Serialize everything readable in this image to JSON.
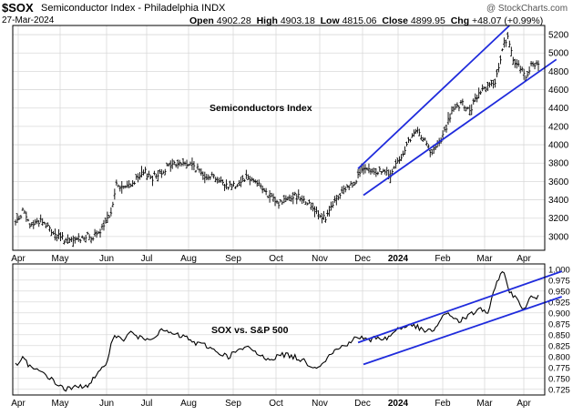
{
  "header": {
    "symbol": "$SOX",
    "name": "Semiconductor Index - Philadelphia",
    "exchange": "INDX",
    "date": "27-Mar-2024",
    "open_label": "Open",
    "open": "4902.28",
    "high_label": "High",
    "high": "4903.18",
    "low_label": "Low",
    "low": "4815.06",
    "close_label": "Close",
    "close": "4899.95",
    "chg_label": "Chg",
    "chg": "+48.07 (+0.99%)",
    "watermark": "@ StockCharts.com"
  },
  "colors": {
    "price": "#000000",
    "channel": "#1f2bdc",
    "grid": "#d9d9d9",
    "frame": "#000000"
  },
  "chart_data": [
    {
      "type": "ohlc",
      "title": "Semiconductors Index",
      "ylim": [
        2850,
        5300
      ],
      "yticks": [
        3000,
        3200,
        3400,
        3600,
        3800,
        4000,
        4200,
        4400,
        4600,
        4800,
        5000,
        5200
      ],
      "x_ticks": [
        "Apr",
        "May",
        "Jun",
        "Jul",
        "Aug",
        "Sep",
        "Oct",
        "Nov",
        "Dec",
        "2024",
        "Feb",
        "Mar",
        "Apr"
      ],
      "series_anchors": [
        [
          0,
          3150
        ],
        [
          4,
          3280
        ],
        [
          8,
          3120
        ],
        [
          14,
          3180
        ],
        [
          22,
          3020
        ],
        [
          30,
          2940
        ],
        [
          38,
          3000
        ],
        [
          45,
          3000
        ],
        [
          52,
          3200
        ],
        [
          56,
          3560
        ],
        [
          60,
          3520
        ],
        [
          66,
          3600
        ],
        [
          72,
          3700
        ],
        [
          76,
          3640
        ],
        [
          80,
          3700
        ],
        [
          86,
          3780
        ],
        [
          92,
          3800
        ],
        [
          98,
          3780
        ],
        [
          104,
          3680
        ],
        [
          110,
          3660
        ],
        [
          116,
          3560
        ],
        [
          122,
          3560
        ],
        [
          128,
          3660
        ],
        [
          134,
          3600
        ],
        [
          140,
          3440
        ],
        [
          146,
          3360
        ],
        [
          152,
          3440
        ],
        [
          158,
          3440
        ],
        [
          166,
          3300
        ],
        [
          172,
          3180
        ],
        [
          176,
          3360
        ],
        [
          182,
          3500
        ],
        [
          188,
          3600
        ],
        [
          192,
          3720
        ],
        [
          198,
          3700
        ],
        [
          204,
          3720
        ],
        [
          208,
          3660
        ],
        [
          212,
          3820
        ],
        [
          218,
          4020
        ],
        [
          222,
          4140
        ],
        [
          227,
          4080
        ],
        [
          230,
          3900
        ],
        [
          236,
          4040
        ],
        [
          242,
          4360
        ],
        [
          248,
          4440
        ],
        [
          252,
          4360
        ],
        [
          257,
          4560
        ],
        [
          262,
          4660
        ],
        [
          266,
          4640
        ],
        [
          270,
          5060
        ],
        [
          273,
          5160
        ],
        [
          276,
          4920
        ],
        [
          280,
          4840
        ],
        [
          283,
          4750
        ],
        [
          286,
          4860
        ],
        [
          290,
          4900
        ]
      ],
      "channel_lines": [
        {
          "from": [
            190,
            3740
          ],
          "to": [
            274,
            5300
          ]
        },
        {
          "from": [
            193,
            3450
          ],
          "to": [
            300,
            4930
          ]
        }
      ]
    },
    {
      "type": "line",
      "title": "SOX vs. S&P 500",
      "ylim": [
        0.712,
        1.012
      ],
      "yticks": [
        0.725,
        0.75,
        0.775,
        0.8,
        0.825,
        0.85,
        0.875,
        0.9,
        0.925,
        0.95,
        0.975,
        1.0
      ],
      "ytick_labels": [
        "0.725",
        "0.750",
        "0.775",
        "0.800",
        "0.825",
        "0.850",
        "0.875",
        "0.900",
        "0.925",
        "0.950",
        "0.975",
        "1.000"
      ],
      "x_ticks": [
        "Apr",
        "May",
        "Jun",
        "Jul",
        "Aug",
        "Sep",
        "Oct",
        "Nov",
        "Dec",
        "2024",
        "Feb",
        "Mar",
        "Apr"
      ],
      "series_anchors": [
        [
          0,
          0.78
        ],
        [
          4,
          0.795
        ],
        [
          10,
          0.77
        ],
        [
          16,
          0.762
        ],
        [
          22,
          0.74
        ],
        [
          28,
          0.725
        ],
        [
          34,
          0.73
        ],
        [
          40,
          0.735
        ],
        [
          46,
          0.76
        ],
        [
          50,
          0.78
        ],
        [
          54,
          0.845
        ],
        [
          60,
          0.84
        ],
        [
          64,
          0.855
        ],
        [
          70,
          0.84
        ],
        [
          76,
          0.845
        ],
        [
          82,
          0.86
        ],
        [
          88,
          0.85
        ],
        [
          94,
          0.845
        ],
        [
          100,
          0.83
        ],
        [
          106,
          0.825
        ],
        [
          112,
          0.81
        ],
        [
          118,
          0.8
        ],
        [
          124,
          0.815
        ],
        [
          130,
          0.82
        ],
        [
          136,
          0.8
        ],
        [
          142,
          0.795
        ],
        [
          148,
          0.805
        ],
        [
          154,
          0.8
        ],
        [
          160,
          0.79
        ],
        [
          166,
          0.775
        ],
        [
          170,
          0.785
        ],
        [
          176,
          0.81
        ],
        [
          182,
          0.825
        ],
        [
          188,
          0.84
        ],
        [
          192,
          0.845
        ],
        [
          196,
          0.835
        ],
        [
          200,
          0.845
        ],
        [
          206,
          0.84
        ],
        [
          212,
          0.865
        ],
        [
          218,
          0.87
        ],
        [
          222,
          0.87
        ],
        [
          226,
          0.858
        ],
        [
          232,
          0.86
        ],
        [
          236,
          0.885
        ],
        [
          240,
          0.9
        ],
        [
          246,
          0.88
        ],
        [
          252,
          0.895
        ],
        [
          258,
          0.91
        ],
        [
          262,
          0.9
        ],
        [
          266,
          0.955
        ],
        [
          270,
          1.0
        ],
        [
          274,
          0.95
        ],
        [
          278,
          0.93
        ],
        [
          282,
          0.91
        ],
        [
          286,
          0.935
        ],
        [
          290,
          0.935
        ]
      ],
      "channel_lines": [
        {
          "from": [
            190,
            0.832
          ],
          "to": [
            303,
            0.995
          ]
        },
        {
          "from": [
            193,
            0.782
          ],
          "to": [
            303,
            0.937
          ]
        }
      ]
    }
  ]
}
